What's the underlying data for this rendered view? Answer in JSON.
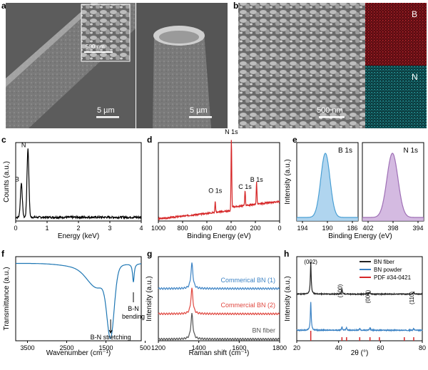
{
  "figure": {
    "panels": {
      "a": {
        "letter": "a",
        "scale_left": "5 µm",
        "scale_right": "5 µm",
        "scale_inset": "500 nm"
      },
      "b": {
        "letter": "b",
        "scale": "500 nm",
        "map_b": "B",
        "map_n": "N"
      }
    }
  },
  "chart_data": [
    {
      "panel": "c",
      "type": "line",
      "xlabel": "Energy (keV)",
      "ylabel": "Counts (a.u.)",
      "xlim": [
        0,
        4
      ],
      "xticks": [
        "0",
        "1",
        "2",
        "3",
        "4"
      ],
      "annotations": [
        "B",
        "N"
      ],
      "color": "#000000",
      "peaks": [
        {
          "label": "B",
          "x": 0.18,
          "rel_height": 0.5
        },
        {
          "label": "N",
          "x": 0.39,
          "rel_height": 1.0
        }
      ]
    },
    {
      "panel": "d",
      "type": "line",
      "xlabel": "Binding Energy (eV)",
      "xlim": [
        1000,
        0
      ],
      "xticks": [
        "1000",
        "800",
        "600",
        "400",
        "200",
        "0"
      ],
      "annotations": [
        "N 1s",
        "O 1s",
        "C 1s",
        "B 1s"
      ],
      "color": "#d62728",
      "peaks": [
        {
          "label": "O 1s",
          "x": 531,
          "rel_height": 0.16
        },
        {
          "label": "N 1s",
          "x": 398,
          "rel_height": 1.0
        },
        {
          "label": "C 1s",
          "x": 285,
          "rel_height": 0.22
        },
        {
          "label": "B 1s",
          "x": 190,
          "rel_height": 0.32
        }
      ]
    },
    {
      "panel": "e",
      "type": "area",
      "xlabel": "Binding Energy (eV)",
      "ylabel": "Intensity (a.u.)",
      "subplots": [
        {
          "label": "B 1s",
          "xlim": [
            196,
            184
          ],
          "xticks": [
            "194",
            "190",
            "186"
          ],
          "peak": 190.4,
          "color": "#4a9fd4",
          "fill": "#9ccbeb"
        },
        {
          "label": "N 1s",
          "xlim": [
            403,
            393
          ],
          "xticks": [
            "402",
            "398",
            "394"
          ],
          "peak": 398.1,
          "color": "#9e6fb5",
          "fill": "#c9a9d9"
        }
      ]
    },
    {
      "panel": "f",
      "type": "line",
      "xlabel": "Wavenumber (cm⁻¹)",
      "ylabel": "Transmittance (a.u.)",
      "xlim": [
        3800,
        600
      ],
      "xticks": [
        "3500",
        "2500",
        "1500",
        "500"
      ],
      "annotations": [
        "B-N stretching",
        "B-N bending"
      ],
      "color": "#1f77b4",
      "bands": [
        {
          "label": "B-N stretching",
          "x": 1380
        },
        {
          "label": "B-N bending",
          "x": 800
        }
      ]
    },
    {
      "panel": "g",
      "type": "line",
      "xlabel": "Raman shift (cm⁻¹)",
      "ylabel": "Intensity (a.u.)",
      "xlim": [
        1200,
        1800
      ],
      "xticks": [
        "1200",
        "1400",
        "1600",
        "1800"
      ],
      "peak": 1366,
      "series": [
        {
          "name": "Commerical BN (1)",
          "color": "#3b82c4"
        },
        {
          "name": "Commercial BN (2)",
          "color": "#e0473f"
        },
        {
          "name": "BN fiber",
          "color": "#555555"
        }
      ]
    },
    {
      "panel": "h",
      "type": "line",
      "xlabel": "2θ (°)",
      "ylabel": "Intensity (a.u.)",
      "xlim": [
        20,
        80
      ],
      "xticks": [
        "20",
        "40",
        "60",
        "80"
      ],
      "peak_labels": [
        {
          "label": "(002)",
          "x": 26.7
        },
        {
          "label": "(100)",
          "x": 41.6
        },
        {
          "label": "(004)",
          "x": 55.0
        },
        {
          "label": "(110)",
          "x": 75.9
        }
      ],
      "pdf_lines": [
        26.7,
        41.6,
        43.8,
        50.1,
        55.0,
        59.5,
        71.4,
        75.9
      ],
      "legend": [
        "BN fiber",
        "BN powder",
        "PDF #34-0421"
      ],
      "colors": [
        "#222222",
        "#3b82c4",
        "#d62728"
      ]
    }
  ]
}
